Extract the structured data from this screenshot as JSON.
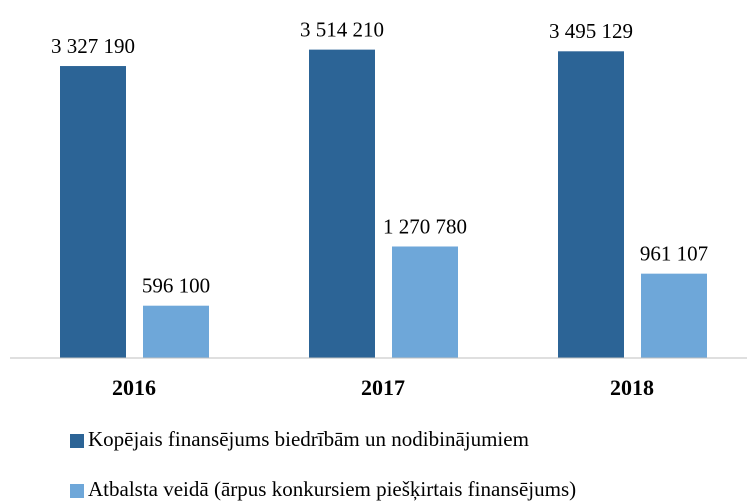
{
  "chart_data": {
    "type": "bar",
    "categories": [
      "2016",
      "2017",
      "2018"
    ],
    "series": [
      {
        "name": "Kopējais finansējums biedrībām un nodibinājumiem",
        "color": "#2c6496",
        "values": [
          3327190,
          3514210,
          3495129
        ],
        "value_labels": [
          "3 327 190",
          "3 514 210",
          "3 495 129"
        ]
      },
      {
        "name": "Atbalsta veidā (ārpus konkursiem piešķirtais finansējums)",
        "color": "#6ea7d9",
        "values": [
          596100,
          1270780,
          961107
        ],
        "value_labels": [
          "596 100",
          "1 270 780",
          "961 107"
        ]
      }
    ],
    "ylim": [
      0,
      4000000
    ]
  }
}
